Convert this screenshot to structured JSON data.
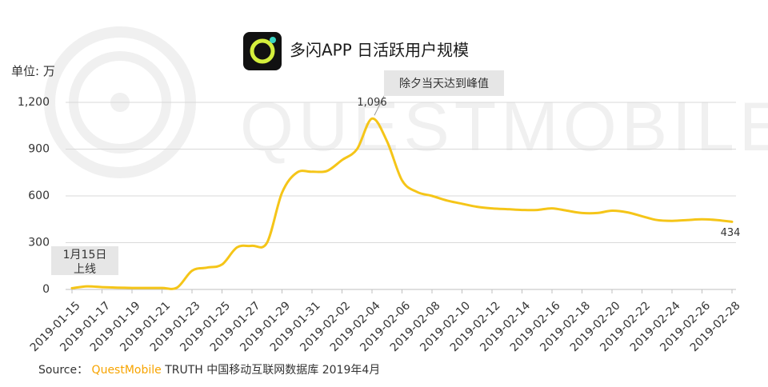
{
  "title": "多闪APP 日活跃用户规模",
  "unit_label": "单位: 万",
  "watermark": "QUESTMOBILE",
  "source": {
    "prefix": "Source：",
    "brand": "QuestMobile",
    "rest": "TRUTH 中国移动互联网数据库 2019年4月"
  },
  "callouts": {
    "peak": "除夕当天达到峰值",
    "launch_line1": "1月15日",
    "launch_line2": "上线"
  },
  "colors": {
    "line": "#f5c518",
    "grid": "#d9d9d9",
    "callout_bg": "#e6e6e6",
    "brand": "#f7a400",
    "watermark": "#f0f0f0",
    "logo_bg": "#111111"
  },
  "chart_data": {
    "type": "line",
    "title": "多闪APP 日活跃用户规模",
    "ylabel": "单位: 万",
    "xlabel": "",
    "ylim": [
      0,
      1200
    ],
    "yticks": [
      0,
      300,
      600,
      900,
      1200
    ],
    "ytick_labels": [
      "0",
      "300",
      "600",
      "900",
      "1,200"
    ],
    "grid": "horizontal",
    "xtick_labels": [
      "2019-01-15",
      "2019-01-17",
      "2019-01-19",
      "2019-01-21",
      "2019-01-23",
      "2019-01-25",
      "2019-01-27",
      "2019-01-29",
      "2019-01-31",
      "2019-02-02",
      "2019-02-04",
      "2019-02-06",
      "2019-02-08",
      "2019-02-10",
      "2019-02-12",
      "2019-02-14",
      "2019-02-16",
      "2019-02-18",
      "2019-02-20",
      "2019-02-22",
      "2019-02-24",
      "2019-02-26",
      "2019-02-28"
    ],
    "x": [
      "2019-01-15",
      "2019-01-16",
      "2019-01-17",
      "2019-01-18",
      "2019-01-19",
      "2019-01-20",
      "2019-01-21",
      "2019-01-22",
      "2019-01-23",
      "2019-01-24",
      "2019-01-25",
      "2019-01-26",
      "2019-01-27",
      "2019-01-28",
      "2019-01-29",
      "2019-01-30",
      "2019-01-31",
      "2019-02-01",
      "2019-02-02",
      "2019-02-03",
      "2019-02-04",
      "2019-02-05",
      "2019-02-06",
      "2019-02-07",
      "2019-02-08",
      "2019-02-09",
      "2019-02-10",
      "2019-02-11",
      "2019-02-12",
      "2019-02-13",
      "2019-02-14",
      "2019-02-15",
      "2019-02-16",
      "2019-02-17",
      "2019-02-18",
      "2019-02-19",
      "2019-02-20",
      "2019-02-21",
      "2019-02-22",
      "2019-02-23",
      "2019-02-24",
      "2019-02-25",
      "2019-02-26",
      "2019-02-27",
      "2019-02-28"
    ],
    "series": [
      {
        "values": [
          8,
          20,
          15,
          12,
          10,
          10,
          10,
          12,
          120,
          140,
          160,
          270,
          280,
          300,
          620,
          750,
          755,
          760,
          830,
          900,
          1096,
          950,
          700,
          625,
          600,
          570,
          550,
          530,
          520,
          515,
          510,
          510,
          520,
          505,
          490,
          490,
          505,
          495,
          470,
          445,
          440,
          445,
          450,
          445,
          434
        ]
      }
    ],
    "data_labels": [
      {
        "x": "2019-02-04",
        "text": "1,096"
      },
      {
        "x": "2019-02-28",
        "text": "434"
      }
    ]
  }
}
